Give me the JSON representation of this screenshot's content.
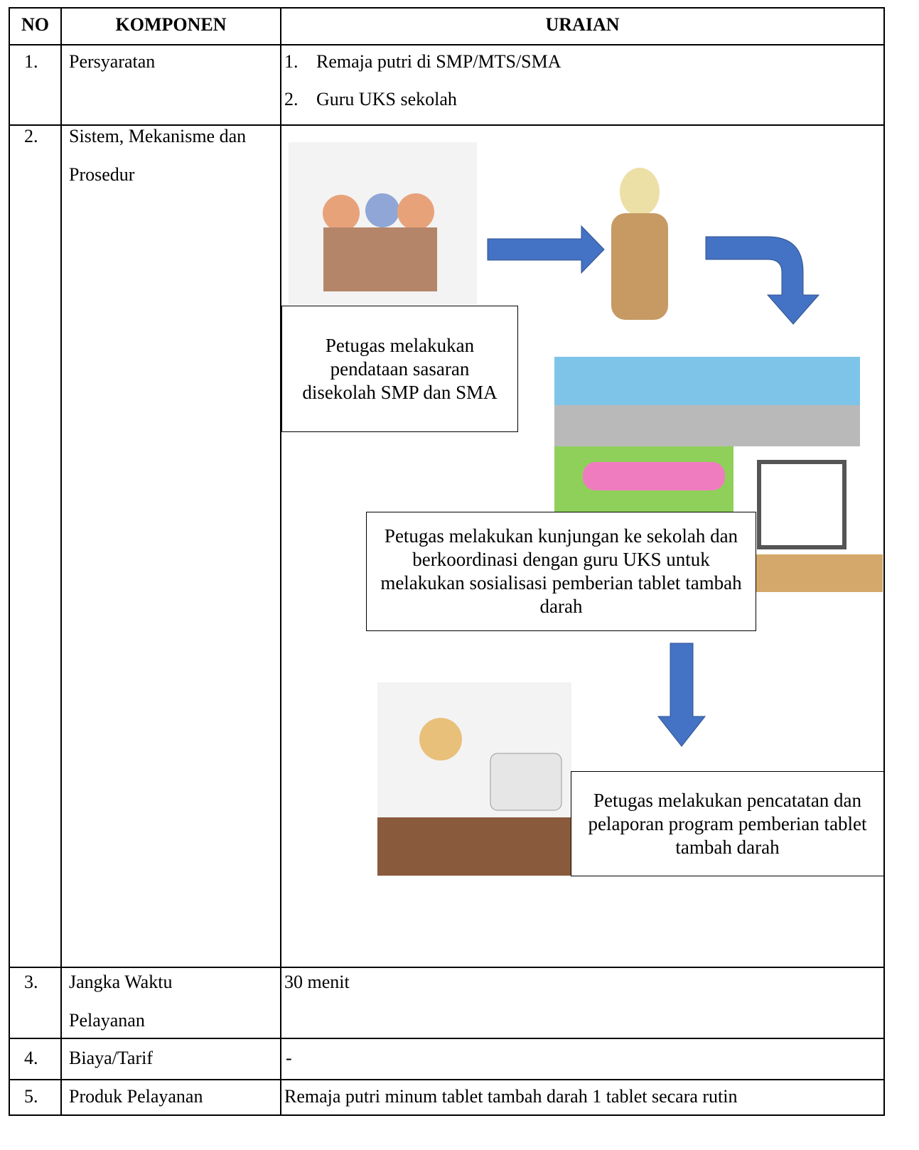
{
  "table": {
    "header": [
      "NO",
      "KOMPONEN",
      "URAIAN"
    ],
    "rows": [
      {
        "no": "1.",
        "komponen": "Persyaratan",
        "items": [
          {
            "number": "1.",
            "text": "Remaja putri di SMP/MTS/SMA"
          },
          {
            "number": "2.",
            "text": "Guru UKS sekolah"
          }
        ]
      },
      {
        "no": "2.",
        "komponen": "Sistem, Mekanisme dan Prosedur",
        "steps": [
          "Petugas melakukan pendataan sasaran disekolah SMP dan SMA",
          "Petugas melakukan kunjungan ke sekolah dan berkoordinasi dengan guru UKS untuk melakukan sosialisasi pemberian tablet tambah darah",
          "Petugas melakukan pencatatan dan pelaporan program pemberian tablet tambah darah"
        ]
      },
      {
        "no": "3.",
        "komponen": "Jangka Waktu Pelayanan",
        "uraian": "30 menit"
      },
      {
        "no": "4.",
        "komponen": "Biaya/Tarif",
        "uraian": "-"
      },
      {
        "no": "5.",
        "komponen": "Produk Pelayanan",
        "uraian": "Remaja putri minum tablet tambah darah 1 tablet secara rutin"
      }
    ]
  }
}
